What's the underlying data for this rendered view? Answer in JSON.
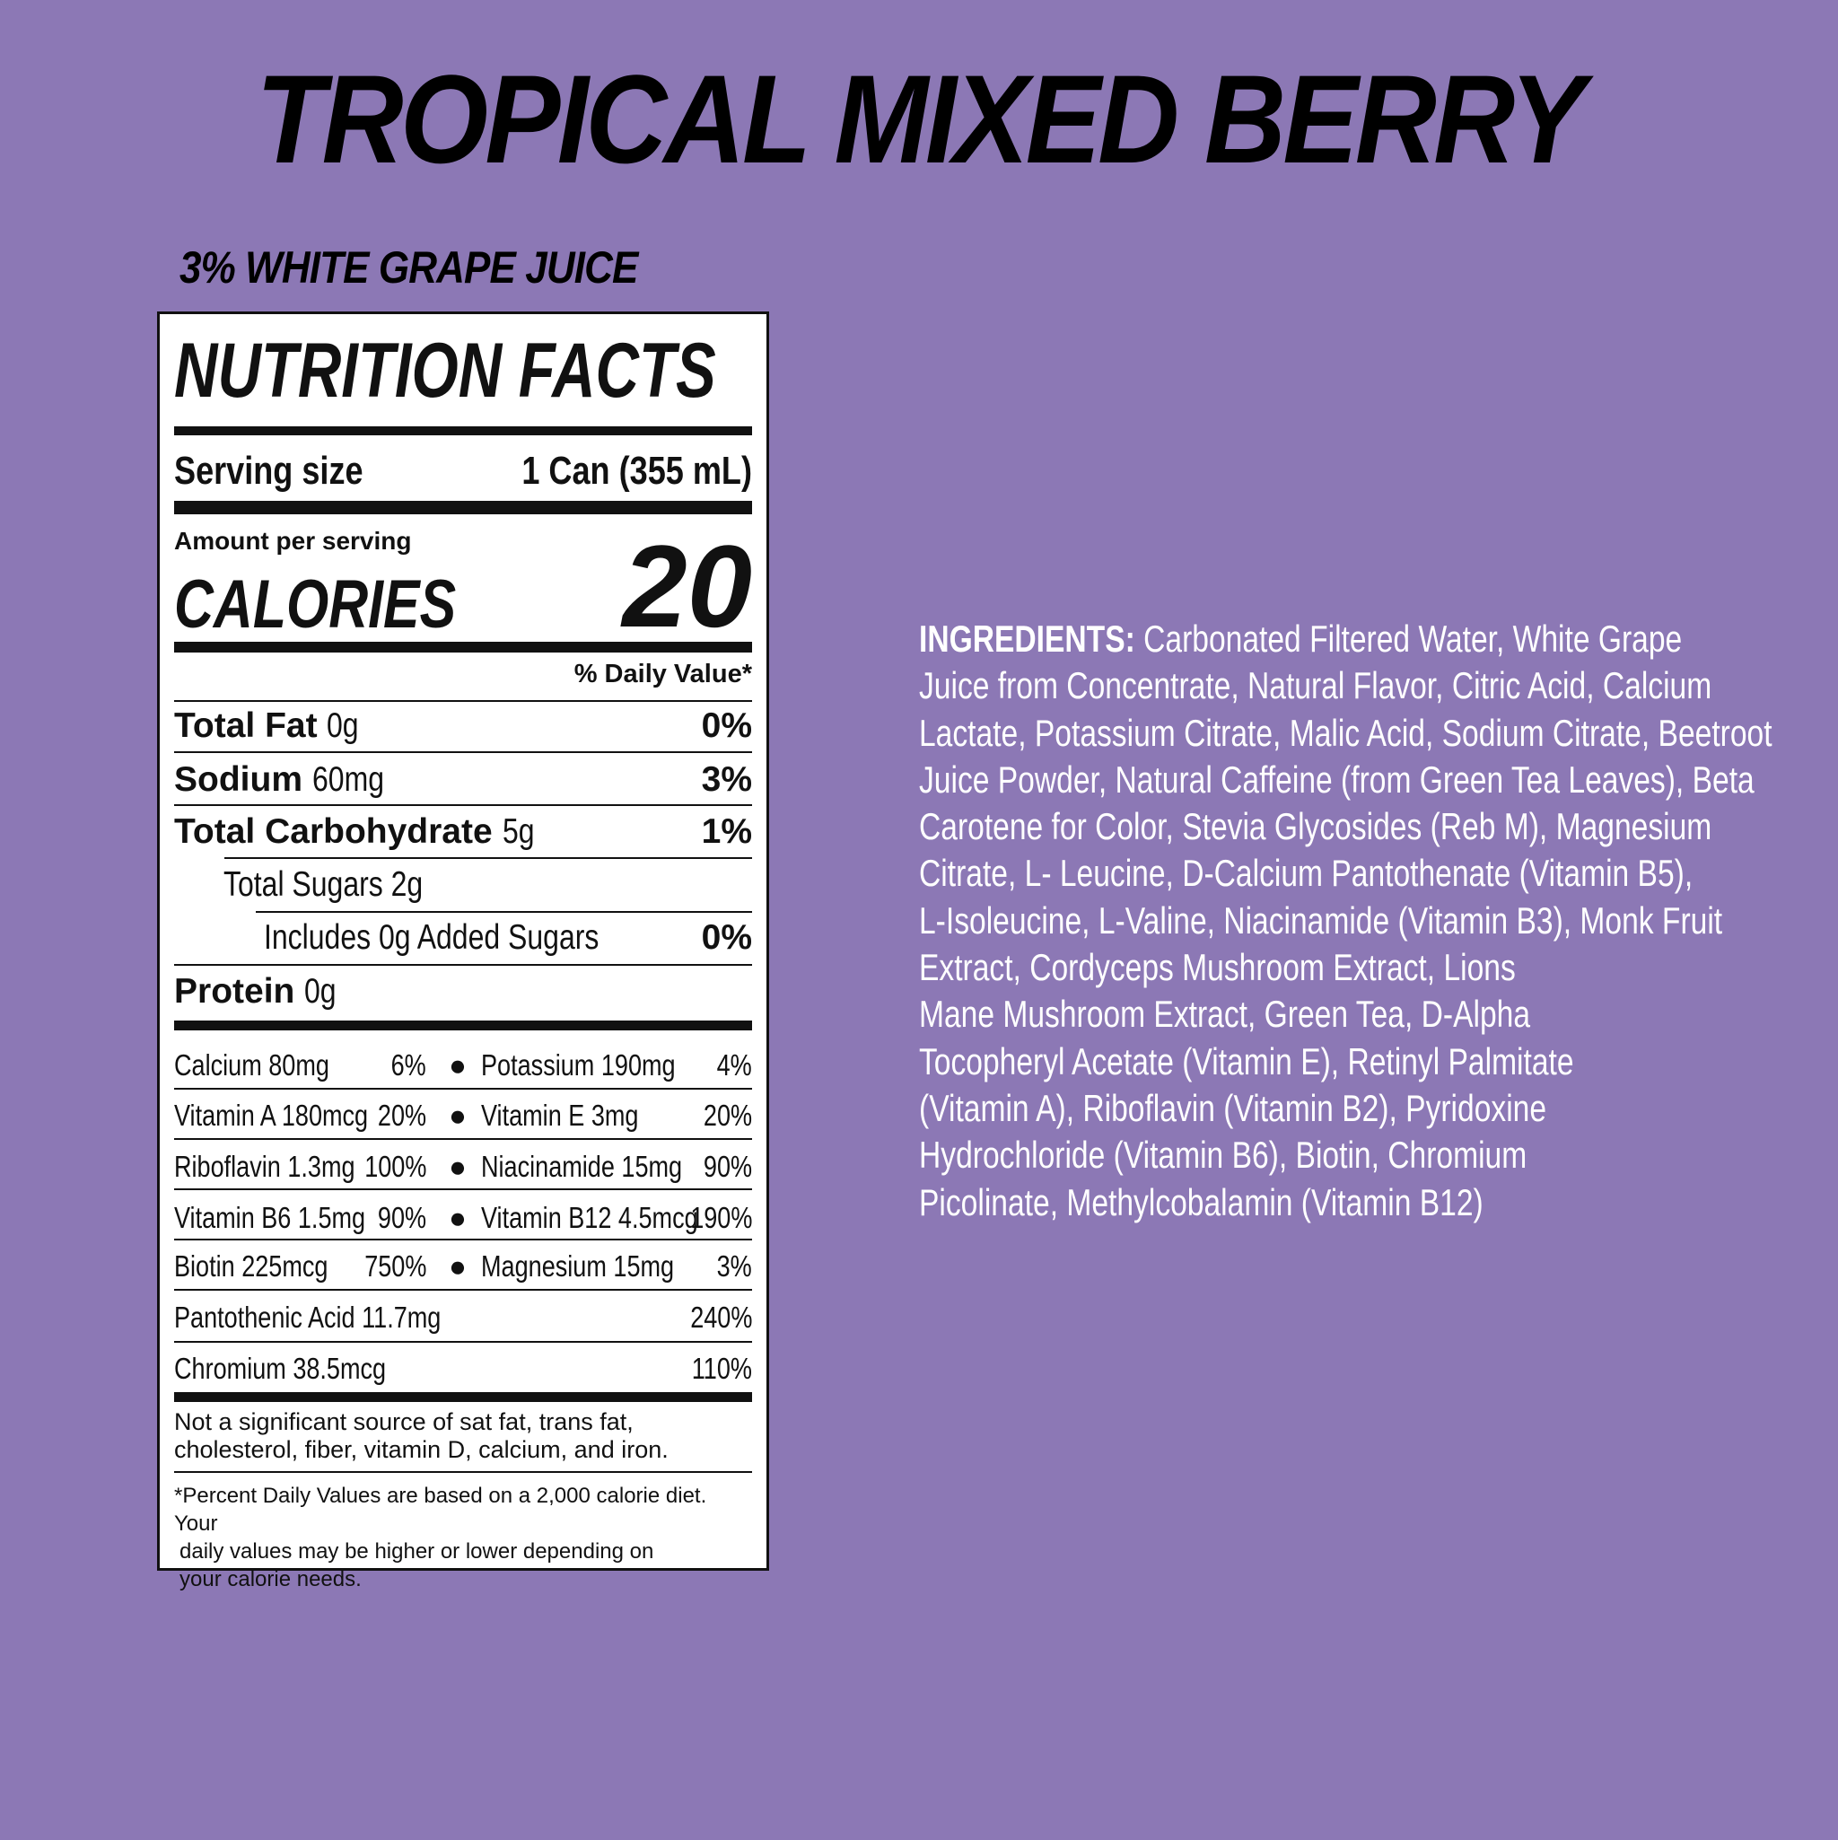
{
  "title": "TROPICAL MIXED BERRY",
  "subtitle": "3% WHITE GRAPE JUICE",
  "nutrition": {
    "heading": "NUTRITION FACTS",
    "serving_size_label": "Serving size",
    "serving_size_value": "1 Can (355 mL)",
    "amount_per_serving": "Amount per serving",
    "calories_label": "CALORIES",
    "calories_value": "20",
    "daily_value_header": "% Daily Value*",
    "nutrients": [
      {
        "name": "Total Fat",
        "amount": "0g",
        "dv": "0%"
      },
      {
        "name": "Sodium",
        "amount": "60mg",
        "dv": "3%"
      },
      {
        "name": "Total Carbohydrate",
        "amount": "5g",
        "dv": "1%"
      },
      {
        "name": "Total Sugars 2g",
        "amount": "",
        "dv": ""
      },
      {
        "name": "Includes 0g Added Sugars",
        "amount": "",
        "dv": "0%"
      },
      {
        "name": "Protein",
        "amount": "0g",
        "dv": ""
      }
    ],
    "vitamins": [
      {
        "left": "Calcium 80mg",
        "left_dv": "6%",
        "right": "Potassium 190mg",
        "right_dv": "4%"
      },
      {
        "left": "Vitamin A 180mcg",
        "left_dv": "20%",
        "right": "Vitamin E 3mg",
        "right_dv": "20%"
      },
      {
        "left": "Riboflavin 1.3mg",
        "left_dv": "100%",
        "right": "Niacinamide 15mg",
        "right_dv": "90%"
      },
      {
        "left": "Vitamin B6 1.5mg",
        "left_dv": "90%",
        "right": "Vitamin B12 4.5mcg",
        "right_dv": "190%"
      },
      {
        "left": "Biotin 225mcg",
        "left_dv": "750%",
        "right": "Magnesium 15mg",
        "right_dv": "3%"
      },
      {
        "left": "Pantothenic Acid 11.7mg",
        "left_dv": "240%"
      },
      {
        "left": "Chromium 38.5mcg",
        "left_dv": "110%"
      }
    ],
    "not_significant": [
      "Not a significant source of sat fat, trans fat,",
      "cholesterol, fiber, vitamin D, calcium, and iron."
    ],
    "footnote": [
      "*Percent Daily Values are based on a 2,000 calorie diet. Your",
      "daily values may be higher or lower depending on",
      "your calorie needs."
    ]
  },
  "ingredients": {
    "label": "INGREDIENTS:",
    "lines": [
      "Carbonated Filtered Water, White Grape",
      "Juice from Concentrate, Natural Flavor, Citric Acid, Calcium",
      "Lactate, Potassium Citrate, Malic Acid, Sodium Citrate, Beetroot",
      "Juice Powder, Natural Caffeine (from Green Tea Leaves), Beta",
      "Carotene for Color, Stevia Glycosides (Reb M), Magnesium",
      "Citrate, L- Leucine, D-Calcium Pantothenate (Vitamin B5),",
      "L-Isoleucine, L-Valine, Niacinamide (Vitamin B3), Monk Fruit",
      "Extract, Cordyceps Mushroom Extract, Lions",
      "Mane Mushroom Extract, Green Tea, D-Alpha",
      "Tocopheryl Acetate (Vitamin E), Retinyl Palmitate",
      "(Vitamin A), Riboflavin (Vitamin B2), Pyridoxine",
      "Hydrochloride (Vitamin B6), Biotin, Chromium",
      "Picolinate, Methylcobalamin (Vitamin B12)"
    ]
  },
  "colors": {
    "background": "#8c78b5",
    "label_bg": "#ffffff",
    "text": "#111111"
  }
}
